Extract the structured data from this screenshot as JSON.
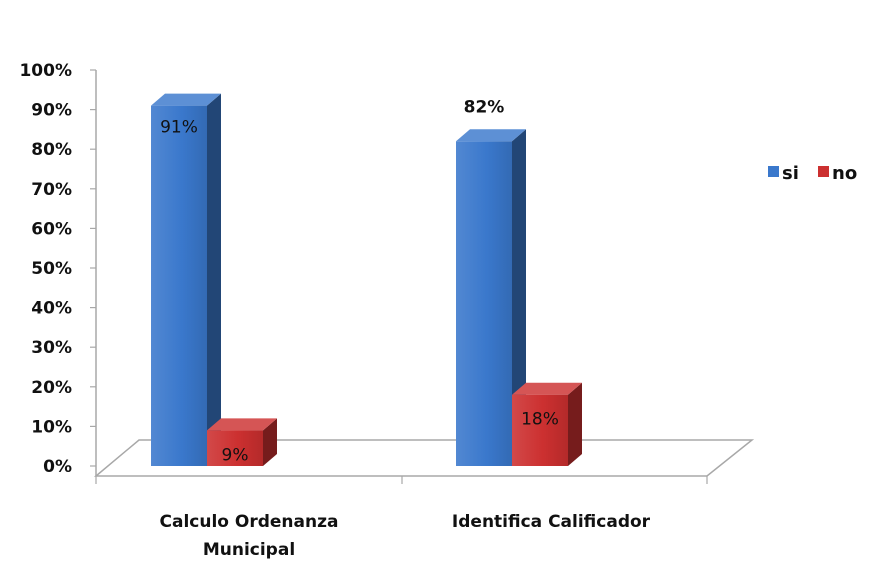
{
  "chart_data": {
    "type": "bar",
    "style": "3d-clustered-column",
    "title": "",
    "xlabel": "",
    "ylabel": "",
    "ylim": [
      0,
      100
    ],
    "yticks": [
      0,
      10,
      20,
      30,
      40,
      50,
      60,
      70,
      80,
      90,
      100
    ],
    "ytick_labels": [
      "0%",
      "10%",
      "20%",
      "30%",
      "40%",
      "50%",
      "60%",
      "70%",
      "80%",
      "90%",
      "100%"
    ],
    "grid": false,
    "categories": [
      {
        "lines": [
          "Calculo Ordenanza",
          "Municipal"
        ]
      },
      {
        "lines": [
          "Identifica Calificador"
        ]
      }
    ],
    "series": [
      {
        "name": "si",
        "color": "#3a78cc",
        "values": [
          91,
          82
        ],
        "labels": [
          "91%",
          "82%"
        ]
      },
      {
        "name": "no",
        "color": "#cc3030",
        "values": [
          9,
          18
        ],
        "labels": [
          "9%",
          "18%"
        ]
      }
    ],
    "legend": {
      "position": "right",
      "entries": [
        "si",
        "no"
      ]
    }
  }
}
